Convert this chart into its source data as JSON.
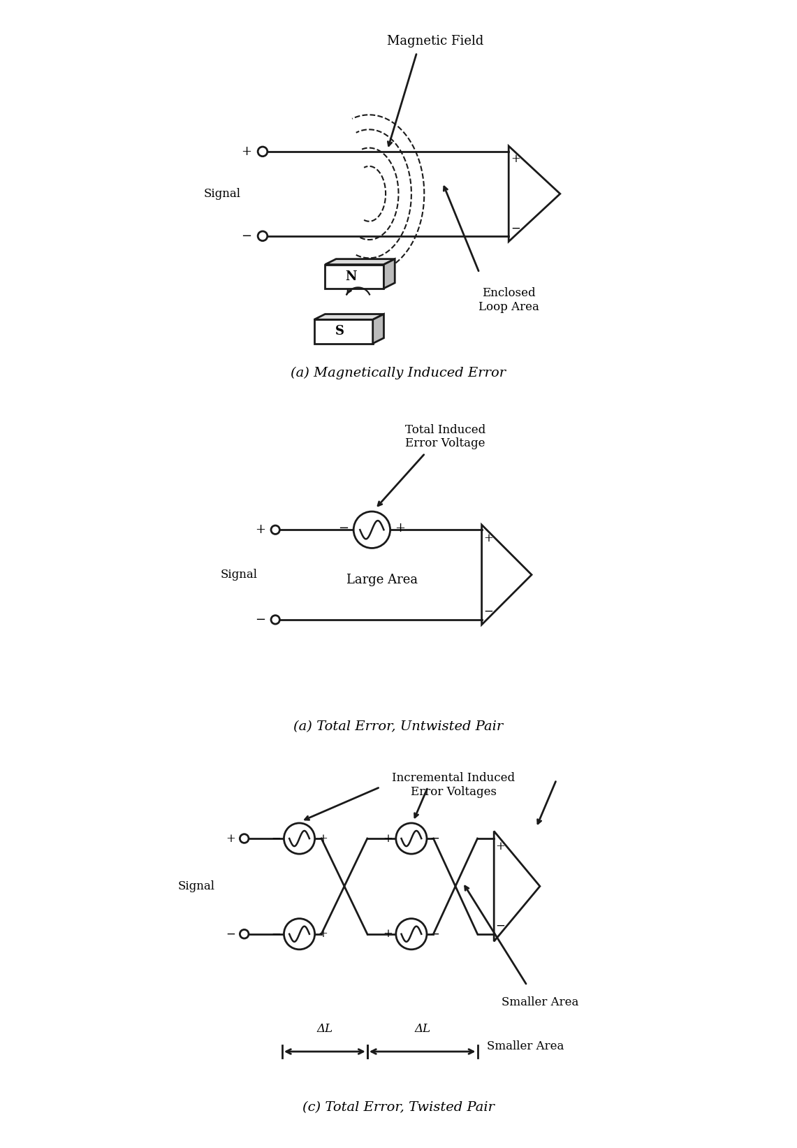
{
  "diagram_a_caption": "(a) Magnetically Induced Error",
  "diagram_b_caption": "(a) Total Error, Untwisted Pair",
  "diagram_c_caption": "(c) Total Error, Twisted Pair",
  "bg_color": "#ffffff",
  "line_color": "#1a1a1a",
  "lw": 2.0,
  "fontsize_caption": 14,
  "fontsize_label": 12,
  "fontsize_sign": 12
}
